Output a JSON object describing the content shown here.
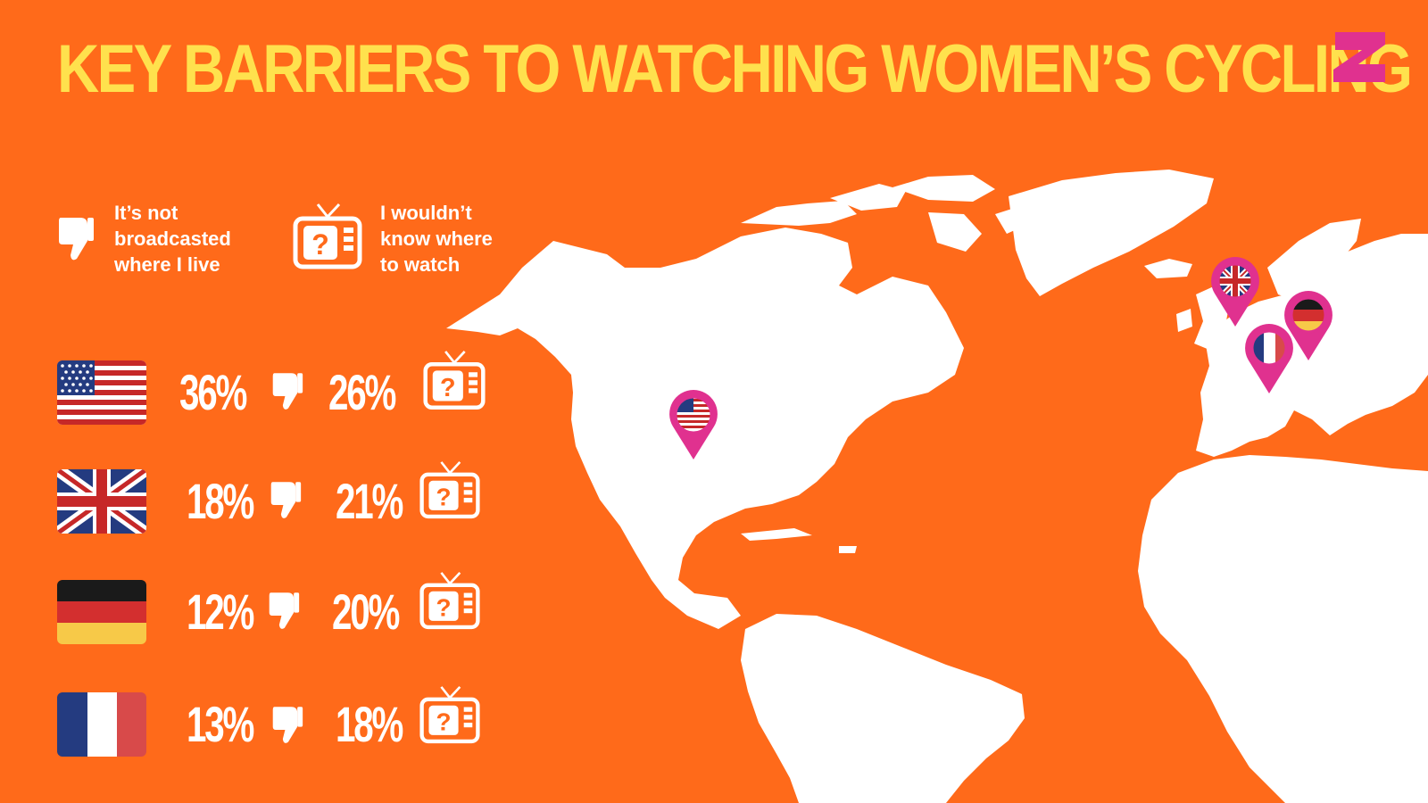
{
  "title": "KEY BARRIERS TO WATCHING WOMEN’S CYCLING",
  "legend": [
    {
      "icon": "thumbs-down-icon",
      "label": "It’s not\nbroadcasted\nwhere I live"
    },
    {
      "icon": "tv-question-icon",
      "label": "I wouldn’t\nknow where\nto watch"
    }
  ],
  "colors": {
    "background": "#ff6a1a",
    "title": "#ffe14d",
    "map": "#ffffff",
    "pin": "#e0318f",
    "text": "#ffffff"
  },
  "chart_data": {
    "type": "table",
    "columns": [
      "It’s not broadcasted where I live",
      "I wouldn’t know where to watch"
    ],
    "rows": [
      {
        "country": "us-flag",
        "values": [
          "36%",
          "26%"
        ]
      },
      {
        "country": "uk-flag",
        "values": [
          "18%",
          "21%"
        ]
      },
      {
        "country": "germany-flag",
        "values": [
          "12%",
          "20%"
        ]
      },
      {
        "country": "france-flag",
        "values": [
          "13%",
          "18%"
        ]
      }
    ],
    "map_pins": [
      "us-flag",
      "uk-flag",
      "germany-flag",
      "france-flag"
    ]
  }
}
